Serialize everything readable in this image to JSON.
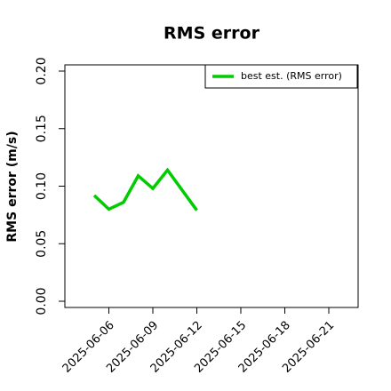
{
  "chart_data": {
    "type": "line",
    "title": "RMS error",
    "y_label": "RMS error (m/s)",
    "x": [
      "2025-06-05",
      "2025-06-06",
      "2025-06-07",
      "2025-06-08",
      "2025-06-09",
      "2025-06-10",
      "2025-06-12"
    ],
    "series": [
      {
        "name": "best est. (RMS error)",
        "color": "#00cc00",
        "values": [
          0.092,
          0.08,
          0.086,
          0.109,
          0.098,
          0.114,
          0.079
        ]
      }
    ],
    "xlim": [
      "2025-06-03",
      "2025-06-23"
    ],
    "xticks": [
      "2025-06-06",
      "2025-06-09",
      "2025-06-12",
      "2025-06-15",
      "2025-06-18",
      "2025-06-21"
    ],
    "xtick_colors": [
      "#000000",
      "#000000",
      "#228b22",
      "#000000",
      "#000000",
      "#000000"
    ],
    "ylim": [
      -0.0054,
      0.2054
    ],
    "yticks": [
      {
        "value": 0,
        "label": "0.00"
      },
      0.05,
      {
        "value": 0.1,
        "label": "0.10"
      },
      0.15,
      {
        "value": 0.2,
        "label": "0.20"
      }
    ],
    "legend": "top-right"
  }
}
